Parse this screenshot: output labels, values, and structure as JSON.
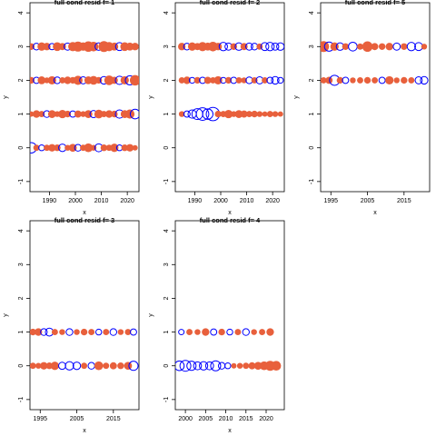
{
  "colors": {
    "positive": "#e8603c",
    "negative": "#0000ff",
    "axis": "#000000"
  },
  "chart_data": [
    {
      "type": "scatter",
      "title": "full cond resid f= 1",
      "xlabel": "x",
      "ylabel": "y",
      "xlim": [
        1982.5,
        2024.5
      ],
      "ylim": [
        -1.3,
        4.3
      ],
      "xticks": [
        1990,
        2000,
        2010,
        2020
      ],
      "yticks": [
        -1,
        0,
        1,
        2,
        3,
        4
      ],
      "rows": [
        {
          "y": 0,
          "x": [
            1983,
            1985,
            1987,
            1989,
            1991,
            1993,
            1995,
            1997,
            1999,
            2001,
            2003,
            2005,
            2007,
            2009,
            2011,
            2013,
            2015,
            2017,
            2019,
            2021,
            2023
          ],
          "r": [
            -2.5,
            1.5,
            -1.4,
            1.5,
            1.8,
            1.6,
            -1.8,
            1.4,
            1.9,
            -1.6,
            1.5,
            2.1,
            1.4,
            -1.9,
            1.6,
            1.5,
            2.0,
            -1.4,
            1.6,
            1.8,
            1.3
          ]
        },
        {
          "y": 1,
          "x": [
            1983,
            1985,
            1987,
            1989,
            1991,
            1993,
            1995,
            1997,
            1999,
            2001,
            2003,
            2005,
            2007,
            2009,
            2011,
            2013,
            2015,
            2017,
            2019,
            2021,
            2023
          ],
          "r": [
            1.3,
            1.8,
            1.5,
            -1.6,
            1.9,
            1.4,
            2.0,
            1.6,
            -1.5,
            1.7,
            1.4,
            1.9,
            -1.7,
            2.1,
            1.5,
            1.8,
            1.6,
            -2.0,
            1.9,
            2.2,
            -2.3
          ]
        },
        {
          "y": 2,
          "x": [
            1983,
            1985,
            1987,
            1989,
            1991,
            1993,
            1995,
            1997,
            1999,
            2001,
            2003,
            2005,
            2007,
            2009,
            2011,
            2013,
            2015,
            2017,
            2019,
            2021,
            2023
          ],
          "r": [
            1.6,
            -1.5,
            1.9,
            1.4,
            2.0,
            -1.6,
            1.5,
            1.8,
            1.6,
            2.2,
            -1.7,
            1.9,
            2.1,
            1.6,
            -1.8,
            2.3,
            1.7,
            -2.0,
            2.0,
            -2.2,
            2.5
          ]
        },
        {
          "y": 3,
          "x": [
            1983,
            1985,
            1987,
            1989,
            1991,
            1993,
            1995,
            1997,
            1999,
            2001,
            2003,
            2005,
            2007,
            2009,
            2011,
            2013,
            2015,
            2017,
            2019,
            2021,
            2023
          ],
          "r": [
            1.6,
            -1.6,
            2.0,
            1.8,
            -1.5,
            2.1,
            1.7,
            -1.7,
            2.2,
            2.4,
            2.0,
            2.5,
            2.3,
            -1.8,
            2.6,
            2.2,
            1.9,
            -1.9,
            2.1,
            1.9,
            1.8
          ]
        }
      ]
    },
    {
      "type": "scatter",
      "title": "full cond resid f= 2",
      "xlabel": "x",
      "ylabel": "y",
      "xlim": [
        1982.5,
        2024.5
      ],
      "ylim": [
        -1.3,
        4.3
      ],
      "xticks": [
        1990,
        2000,
        2010,
        2020
      ],
      "yticks": [
        -1,
        0,
        1,
        2,
        3,
        4
      ],
      "rows": [
        {
          "y": 1,
          "x": [
            1985,
            1987,
            1989,
            1991,
            1993,
            1995,
            1997,
            1999,
            2001,
            2003,
            2005,
            2007,
            2009,
            2011,
            2013,
            2015,
            2017,
            2019,
            2021,
            2023
          ],
          "r": [
            1.4,
            -1.5,
            -2.0,
            -2.6,
            -3.0,
            -2.5,
            -3.2,
            1.6,
            1.5,
            2.0,
            1.4,
            1.9,
            1.7,
            1.5,
            1.6,
            1.4,
            1.3,
            1.5,
            1.4,
            1.3
          ]
        },
        {
          "y": 2,
          "x": [
            1985,
            1987,
            1989,
            1991,
            1993,
            1995,
            1997,
            1999,
            2001,
            2003,
            2005,
            2007,
            2009,
            2011,
            2013,
            2015,
            2017,
            2019,
            2021,
            2023
          ],
          "r": [
            1.5,
            1.8,
            -1.4,
            1.6,
            -1.5,
            1.7,
            1.5,
            2.0,
            -1.4,
            1.6,
            -1.5,
            1.5,
            1.4,
            -1.6,
            1.5,
            -1.7,
            1.5,
            -1.5,
            -1.8,
            -1.4
          ]
        },
        {
          "y": 3,
          "x": [
            1985,
            1987,
            1989,
            1991,
            1993,
            1995,
            1997,
            1999,
            2001,
            2003,
            2005,
            2007,
            2009,
            2011,
            2013,
            2015,
            2017,
            2019,
            2021,
            2023
          ],
          "r": [
            1.8,
            -1.6,
            2.0,
            1.7,
            2.2,
            1.9,
            2.3,
            1.8,
            -2.0,
            -1.7,
            1.6,
            -1.8,
            1.7,
            -1.7,
            -1.6,
            1.5,
            -1.9,
            -2.0,
            -1.7,
            -1.8
          ]
        }
      ]
    },
    {
      "type": "scatter",
      "title": "full cond resid f= 5",
      "xlabel": "x",
      "ylabel": "y",
      "xlim": [
        1992.2,
        2022
      ],
      "ylim": [
        -1.3,
        4.3
      ],
      "xticks": [
        1995,
        2005,
        2015
      ],
      "yticks": [
        -1,
        0,
        1,
        2,
        3,
        4
      ],
      "rows": [
        {
          "y": 2,
          "x": [
            1993,
            1994.5,
            1996,
            1997.5,
            1999,
            2001,
            2003,
            2005,
            2007,
            2009,
            2011,
            2013,
            2015,
            2017,
            2019,
            2020.5
          ],
          "r": [
            1.5,
            1.7,
            -2.4,
            1.6,
            -1.5,
            1.4,
            1.5,
            1.6,
            1.5,
            -1.5,
            2.0,
            1.4,
            1.6,
            1.5,
            -1.7,
            -1.8
          ]
        },
        {
          "y": 3,
          "x": [
            1993,
            1994.5,
            1996,
            1997.5,
            1999,
            2001,
            2003,
            2005,
            2007,
            2009,
            2011,
            2013,
            2015,
            2017,
            2019,
            2020.5
          ],
          "r": [
            2.6,
            -2.2,
            2.0,
            -1.8,
            1.6,
            -2.1,
            1.5,
            2.5,
            1.7,
            1.6,
            1.8,
            -1.7,
            1.6,
            -2.0,
            -1.9,
            1.4
          ]
        }
      ]
    },
    {
      "type": "scatter",
      "title": "full cond resid f= 3",
      "xlabel": "x",
      "ylabel": "y",
      "xlim": [
        1992.2,
        2022
      ],
      "ylim": [
        -1.3,
        4.3
      ],
      "xticks": [
        1995,
        2005,
        2015
      ],
      "yticks": [
        -1,
        0,
        1,
        2,
        3,
        4
      ],
      "rows": [
        {
          "y": 0,
          "x": [
            1993,
            1994.5,
            1996,
            1997.5,
            1999,
            2001,
            2003,
            2005,
            2007,
            2009,
            2011,
            2013,
            2015,
            2017,
            2019,
            2020.5
          ],
          "r": [
            1.5,
            1.4,
            1.8,
            1.6,
            2.0,
            -1.7,
            -2.0,
            -1.8,
            1.5,
            -1.6,
            2.1,
            1.5,
            1.7,
            1.6,
            1.9,
            -2.2
          ]
        },
        {
          "y": 1,
          "x": [
            1993,
            1994.5,
            1996,
            1997.5,
            1999,
            2001,
            2003,
            2005,
            2007,
            2009,
            2011,
            2013,
            2015,
            2017,
            2019,
            2020.5
          ],
          "r": [
            1.6,
            1.8,
            -1.6,
            -1.9,
            1.5,
            1.4,
            -1.6,
            1.4,
            1.6,
            1.5,
            -1.4,
            1.5,
            -1.6,
            1.4,
            1.5,
            -1.5
          ]
        }
      ]
    },
    {
      "type": "scatter",
      "title": "full cond resid f= 4",
      "xlabel": "x",
      "ylabel": "y",
      "xlim": [
        1997.5,
        2024.5
      ],
      "ylim": [
        -1.3,
        4.3
      ],
      "xticks": [
        2000,
        2005,
        2010,
        2015,
        2020
      ],
      "yticks": [
        -1,
        0,
        1,
        2,
        3,
        4
      ],
      "rows": [
        {
          "y": 0,
          "x": [
            1998.5,
            2000,
            2001.5,
            2003,
            2004.5,
            2006,
            2007.5,
            2009,
            2010.5,
            2012,
            2013.5,
            2015,
            2016.5,
            2018,
            2019.5,
            2021,
            2022.5
          ],
          "r": [
            -2.3,
            -2.6,
            -2.2,
            -1.9,
            -2.0,
            -1.9,
            -2.4,
            -1.6,
            -1.4,
            1.3,
            1.4,
            1.5,
            1.7,
            1.9,
            2.1,
            2.4,
            2.3
          ]
        },
        {
          "y": 1,
          "x": [
            1999,
            2001,
            2003,
            2005,
            2007,
            2009,
            2011,
            2013,
            2015,
            2017,
            2019,
            2021
          ],
          "r": [
            -1.3,
            1.5,
            1.4,
            1.8,
            -1.5,
            1.6,
            -1.4,
            1.5,
            -1.6,
            1.4,
            1.5,
            1.8
          ]
        }
      ]
    }
  ]
}
